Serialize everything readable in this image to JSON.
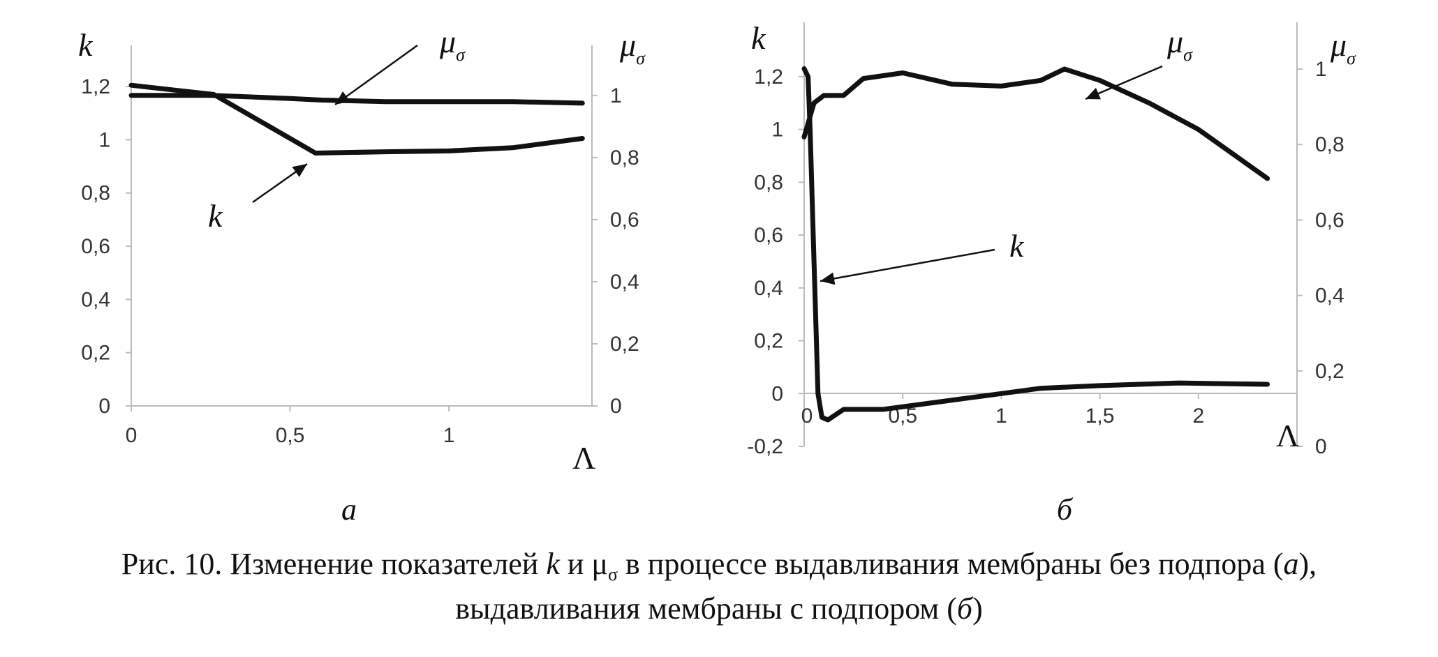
{
  "chart_data": [
    {
      "type": "line",
      "panel_label": "а",
      "xlabel": "Λ",
      "ylabel_left": "k",
      "ylabel_right": "μσ",
      "xlim": [
        0,
        1.45
      ],
      "ylim_left": [
        0,
        1.25
      ],
      "ylim_right": [
        0,
        1.0714
      ],
      "xticks": [
        "0",
        "0,5",
        "1"
      ],
      "xtick_values": [
        0,
        0.5,
        1
      ],
      "yticks_left": [
        "0",
        "0,2",
        "0,4",
        "0,6",
        "0,8",
        "1",
        "1,2"
      ],
      "yticks_left_values": [
        0,
        0.2,
        0.4,
        0.6,
        0.8,
        1,
        1.2
      ],
      "yticks_right": [
        "0",
        "0,2",
        "0,4",
        "0,6",
        "0,8",
        "1"
      ],
      "yticks_right_values": [
        0,
        0.2,
        0.4,
        0.6,
        0.8,
        1
      ],
      "series": [
        {
          "name": "k",
          "axis": "left",
          "x": [
            0,
            0.26,
            0.58,
            0.8,
            1.0,
            1.2,
            1.42
          ],
          "y": [
            1.205,
            1.17,
            0.95,
            0.955,
            0.958,
            0.97,
            1.005
          ]
        },
        {
          "name": "μσ",
          "axis": "right",
          "x": [
            0,
            0.25,
            0.5,
            0.6,
            0.8,
            1.0,
            1.2,
            1.42
          ],
          "y": [
            1.0,
            1.0,
            0.99,
            0.985,
            0.98,
            0.98,
            0.98,
            0.975
          ]
        }
      ],
      "annotations": [
        {
          "text": "μσ",
          "target_series": "μσ"
        },
        {
          "text": "k",
          "target_series": "k"
        }
      ]
    },
    {
      "type": "line",
      "panel_label": "б",
      "xlabel": "Λ",
      "ylabel_left": "k",
      "ylabel_right": "μσ",
      "xlim": [
        0,
        2.5
      ],
      "ylim_left": [
        -0.2,
        1.3
      ],
      "ylim_right": [
        0,
        1.05
      ],
      "xticks": [
        "0",
        "0,5",
        "1",
        "1,5",
        "2"
      ],
      "xtick_values": [
        0,
        0.5,
        1,
        1.5,
        2
      ],
      "yticks_left": [
        "-0,2",
        "0",
        "0,2",
        "0,4",
        "0,6",
        "0,8",
        "1",
        "1,2"
      ],
      "yticks_left_values": [
        -0.2,
        0,
        0.2,
        0.4,
        0.6,
        0.8,
        1,
        1.2
      ],
      "yticks_right": [
        "0",
        "0,2",
        "0,4",
        "0,6",
        "0,8",
        "1"
      ],
      "yticks_right_values": [
        0,
        0.2,
        0.4,
        0.6,
        0.8,
        1
      ],
      "series": [
        {
          "name": "k",
          "axis": "left",
          "x": [
            0,
            0.02,
            0.03,
            0.05,
            0.07,
            0.09,
            0.12,
            0.2,
            0.4,
            0.7,
            1.0,
            1.2,
            1.5,
            1.9,
            2.35
          ],
          "y": [
            1.23,
            1.2,
            1.0,
            0.5,
            0.0,
            -0.09,
            -0.1,
            -0.06,
            -0.06,
            -0.03,
            0.0,
            0.02,
            0.03,
            0.04,
            0.035
          ]
        },
        {
          "name": "μσ",
          "axis": "right",
          "x": [
            0,
            0.05,
            0.1,
            0.2,
            0.3,
            0.5,
            0.75,
            1.0,
            1.2,
            1.32,
            1.5,
            1.75,
            2.0,
            2.35
          ],
          "y": [
            0.82,
            0.91,
            0.93,
            0.93,
            0.975,
            0.99,
            0.96,
            0.955,
            0.97,
            1.0,
            0.97,
            0.91,
            0.84,
            0.71
          ]
        }
      ],
      "annotations": [
        {
          "text": "μσ",
          "target_series": "μσ"
        },
        {
          "text": "k",
          "target_series": "k"
        }
      ]
    }
  ],
  "caption": {
    "line1_prefix": "Рис. 10. Изменение показателей ",
    "k": "k",
    "and": " и ",
    "mu": "μ",
    "sigma": "σ",
    "line1_mid": " в процессе выдавливания мембраны без подпора (",
    "a": "а",
    "line1_end": "),",
    "line2_prefix": "выдавливания мембраны с подпором (",
    "b": "б",
    "line2_end": ")"
  }
}
